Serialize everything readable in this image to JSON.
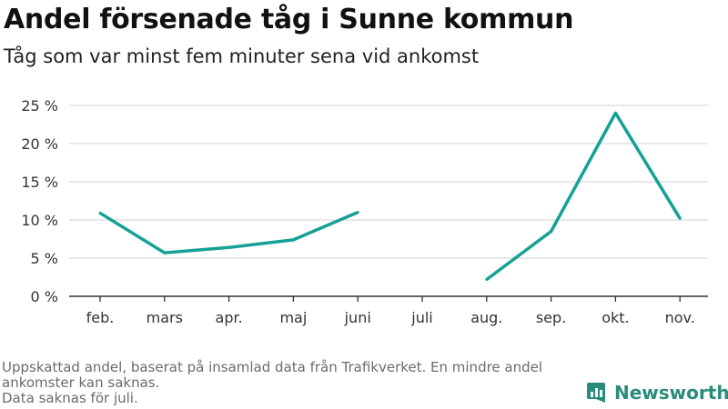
{
  "title": "Andel försenade tåg i Sunne kommun",
  "subtitle": "Tåg som var minst fem minuter sena vid ankomst",
  "footnote": {
    "line1": "Uppskattad andel, baserat på insamlad data från Trafikverket. En mindre andel ankomster kan saknas.",
    "line2": "Data saknas för juli."
  },
  "brand": {
    "name": "Newsworthy",
    "icon": "bar-chart-icon"
  },
  "colors": {
    "line": "#16a196",
    "grid": "#d9d9d9",
    "axis": "#333333",
    "brand": "#2a8c7a"
  },
  "chart_data": {
    "type": "line",
    "categories": [
      "feb.",
      "mars",
      "apr.",
      "maj",
      "juni",
      "juli",
      "aug.",
      "sep.",
      "okt.",
      "nov."
    ],
    "series": [
      {
        "name": "Andel försenade tåg",
        "values": [
          10.9,
          5.7,
          6.4,
          7.4,
          11.0,
          null,
          2.2,
          8.5,
          24.0,
          10.2
        ]
      }
    ],
    "yticks": [
      0,
      5,
      10,
      15,
      20,
      25
    ],
    "ytick_labels": [
      "0 %",
      "5 %",
      "10 %",
      "15 %",
      "20 %",
      "25 %"
    ],
    "ylim": [
      0,
      25
    ],
    "xlabel": "",
    "ylabel": "",
    "grid": true
  }
}
